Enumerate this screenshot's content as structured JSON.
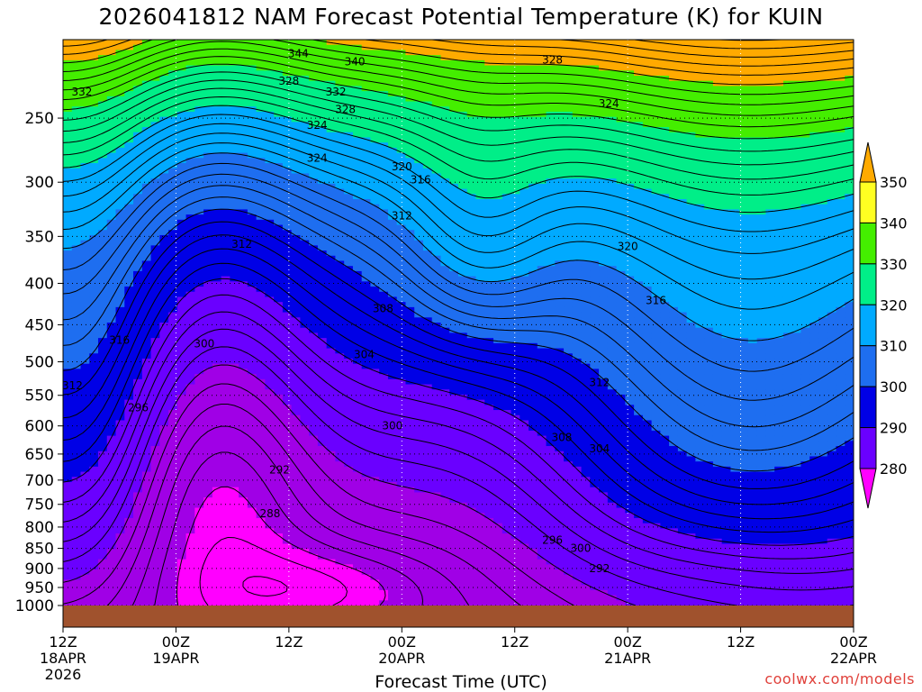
{
  "chart_data": {
    "type": "contour",
    "title": "2026041812 NAM Forecast Potential Temperature (K) for KUIN",
    "xlabel": "Forecast Time (UTC)",
    "ylabel": "",
    "y_ticks": [
      250,
      300,
      350,
      400,
      450,
      500,
      550,
      600,
      650,
      700,
      750,
      800,
      850,
      900,
      950,
      1000
    ],
    "ylim": [
      1000,
      200
    ],
    "y_scale": "log-pressure",
    "x_range_hours": [
      0,
      84
    ],
    "x_ticks": [
      {
        "hour": 0,
        "line1": "12Z",
        "line2": "18APR",
        "line3": "2026"
      },
      {
        "hour": 12,
        "line1": "00Z",
        "line2": "19APR",
        "line3": ""
      },
      {
        "hour": 24,
        "line1": "12Z",
        "line2": "",
        "line3": ""
      },
      {
        "hour": 36,
        "line1": "00Z",
        "line2": "20APR",
        "line3": ""
      },
      {
        "hour": 48,
        "line1": "12Z",
        "line2": "",
        "line3": ""
      },
      {
        "hour": 60,
        "line1": "00Z",
        "line2": "21APR",
        "line3": ""
      },
      {
        "hour": 72,
        "line1": "12Z",
        "line2": "",
        "line3": ""
      },
      {
        "hour": 84,
        "line1": "00Z",
        "line2": "22APR",
        "line3": ""
      }
    ],
    "colorbar": {
      "levels": [
        280,
        290,
        300,
        310,
        320,
        330,
        340,
        350
      ],
      "colors": [
        "#ff00ff",
        "#a000e6",
        "#6a00ff",
        "#0000e6",
        "#1e6ef0",
        "#00aaff",
        "#00ee88",
        "#44ee00",
        "#ffff22",
        "#ffaa00"
      ]
    },
    "contour_labels": [
      "344",
      "340",
      "328",
      "332",
      "328",
      "324",
      "332",
      "324",
      "320",
      "316",
      "312",
      "328",
      "312",
      "324",
      "320",
      "308",
      "316",
      "316",
      "300",
      "304",
      "312",
      "312",
      "296",
      "300",
      "308",
      "304",
      "292",
      "288",
      "296",
      "300",
      "292"
    ],
    "grid": true,
    "ground_color": "#a0522d"
  },
  "credit": "coolwx.com/models"
}
